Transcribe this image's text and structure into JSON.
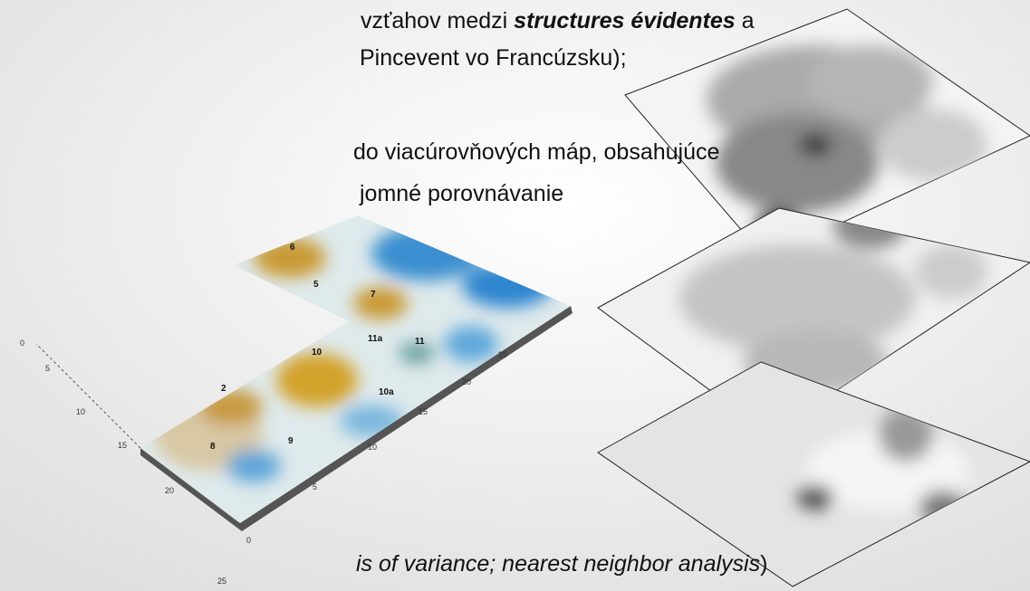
{
  "slide": {
    "line1": {
      "before": "vzťahov medzi ",
      "emphasis": "structures évidentes",
      "after": " a"
    },
    "line2": "Pincevent vo Francúzsku);",
    "line3": "do viacúrovňových máp, obsahujúce",
    "line4": "jomné porovnávanie",
    "line5": {
      "italic": "is of variance; nearest neighbor analysis",
      "after": ")"
    }
  },
  "map": {
    "labels": [
      "6",
      "5",
      "7",
      "11a",
      "11",
      "10",
      "2",
      "10a",
      "8",
      "9"
    ],
    "left_axis": [
      "0",
      "5",
      "10",
      "15",
      "20",
      "25"
    ],
    "bottom_axis": [
      "0",
      "5",
      "10",
      "15",
      "20",
      "25"
    ]
  }
}
